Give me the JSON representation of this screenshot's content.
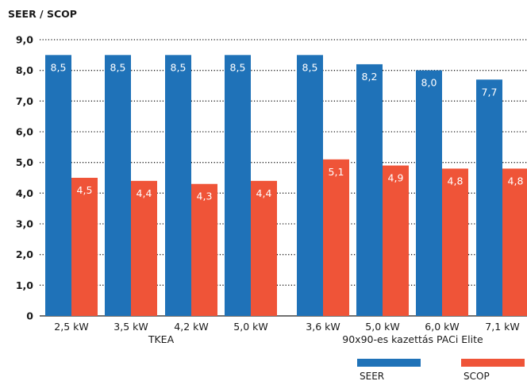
{
  "colors": {
    "seer": "#1f72b8",
    "scop": "#ef5438"
  },
  "chart_data": {
    "type": "bar",
    "ylabel": "SEER / SCOP",
    "ylim": [
      0,
      9
    ],
    "yticks": [
      "0",
      "1,0",
      "2,0",
      "3,0",
      "4,0",
      "5,0",
      "6,0",
      "7,0",
      "8,0",
      "9,0"
    ],
    "grid": "dotted horizontal",
    "legend": "bottom-right",
    "groups": [
      {
        "label": "TKEA",
        "categories": [
          "2,5 kW",
          "3,5 kW",
          "4,2 kW",
          "5,0 kW"
        ]
      },
      {
        "label": "90x90-es kazettás PACi Elite",
        "categories": [
          "3,6 kW",
          "5,0 kW",
          "6,0 kW",
          "7,1 kW"
        ]
      }
    ],
    "categories": [
      "2,5 kW",
      "3,5 kW",
      "4,2 kW",
      "5,0 kW",
      "3,6 kW",
      "5,0 kW",
      "6,0 kW",
      "7,1 kW"
    ],
    "series": [
      {
        "name": "SEER",
        "values": [
          8.5,
          8.5,
          8.5,
          8.5,
          8.5,
          8.2,
          8.0,
          7.7
        ],
        "labels": [
          "8,5",
          "8,5",
          "8,5",
          "8,5",
          "8,5",
          "8,2",
          "8,0",
          "7,7"
        ]
      },
      {
        "name": "SCOP",
        "values": [
          4.5,
          4.4,
          4.3,
          4.4,
          5.1,
          4.9,
          4.8,
          4.8
        ],
        "labels": [
          "4,5",
          "4,4",
          "4,3",
          "4,4",
          "5,1",
          "4,9",
          "4,8",
          "4,8"
        ]
      }
    ]
  }
}
